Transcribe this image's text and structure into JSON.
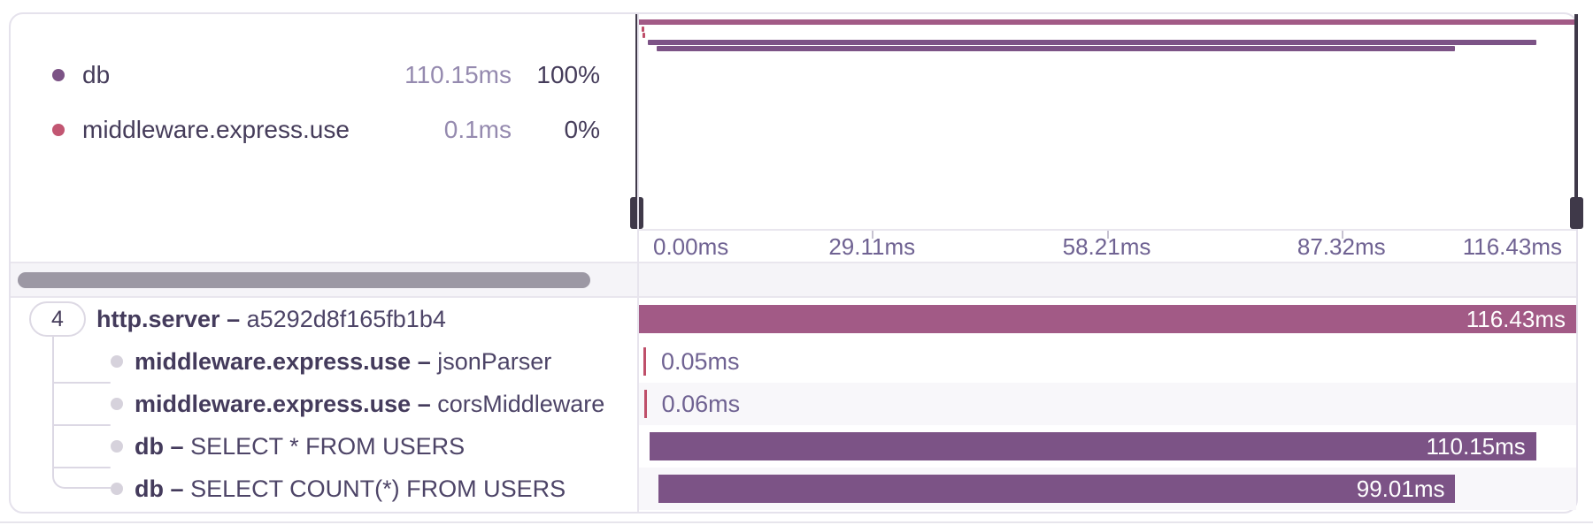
{
  "trace_view": {
    "total_ms": 116.43,
    "legend": {
      "items": [
        {
          "name": "db",
          "duration": "110.15ms",
          "percent": "100%",
          "color": "#7c5386"
        },
        {
          "name": "middleware.express.use",
          "duration": "0.1ms",
          "percent": "0%",
          "color": "#c25672"
        }
      ]
    },
    "minimap": {
      "axis_labels": [
        "0.00ms",
        "29.11ms",
        "58.21ms",
        "87.32ms",
        "116.43ms"
      ]
    },
    "spans": [
      {
        "op": "http.server",
        "separator": "–",
        "description": "a5292d8f165fb1b4",
        "children_count": "4",
        "start_ms": 0,
        "duration_ms": 116.43,
        "duration_label": "116.43ms",
        "color": "#a25a86",
        "label_placement": "inside"
      },
      {
        "op": "middleware.express.use",
        "separator": "–",
        "description": "jsonParser",
        "start_ms": 0.55,
        "duration_ms": 0.05,
        "duration_label": "0.05ms",
        "color": "#bf4f6a",
        "label_placement": "outside"
      },
      {
        "op": "middleware.express.use",
        "separator": "–",
        "description": "corsMiddleware",
        "start_ms": 0.62,
        "duration_ms": 0.06,
        "duration_label": "0.06ms",
        "color": "#bf4f6a",
        "label_placement": "outside"
      },
      {
        "op": "db",
        "separator": "–",
        "description": "SELECT * FROM USERS",
        "start_ms": 1.31,
        "duration_ms": 110.15,
        "duration_label": "110.15ms",
        "color": "#7c5386",
        "label_placement": "inside"
      },
      {
        "op": "db",
        "separator": "–",
        "description": "SELECT COUNT(*) FROM USERS",
        "start_ms": 2.41,
        "duration_ms": 99.01,
        "duration_label": "99.01ms",
        "color": "#7c5386",
        "label_placement": "inside"
      }
    ]
  }
}
